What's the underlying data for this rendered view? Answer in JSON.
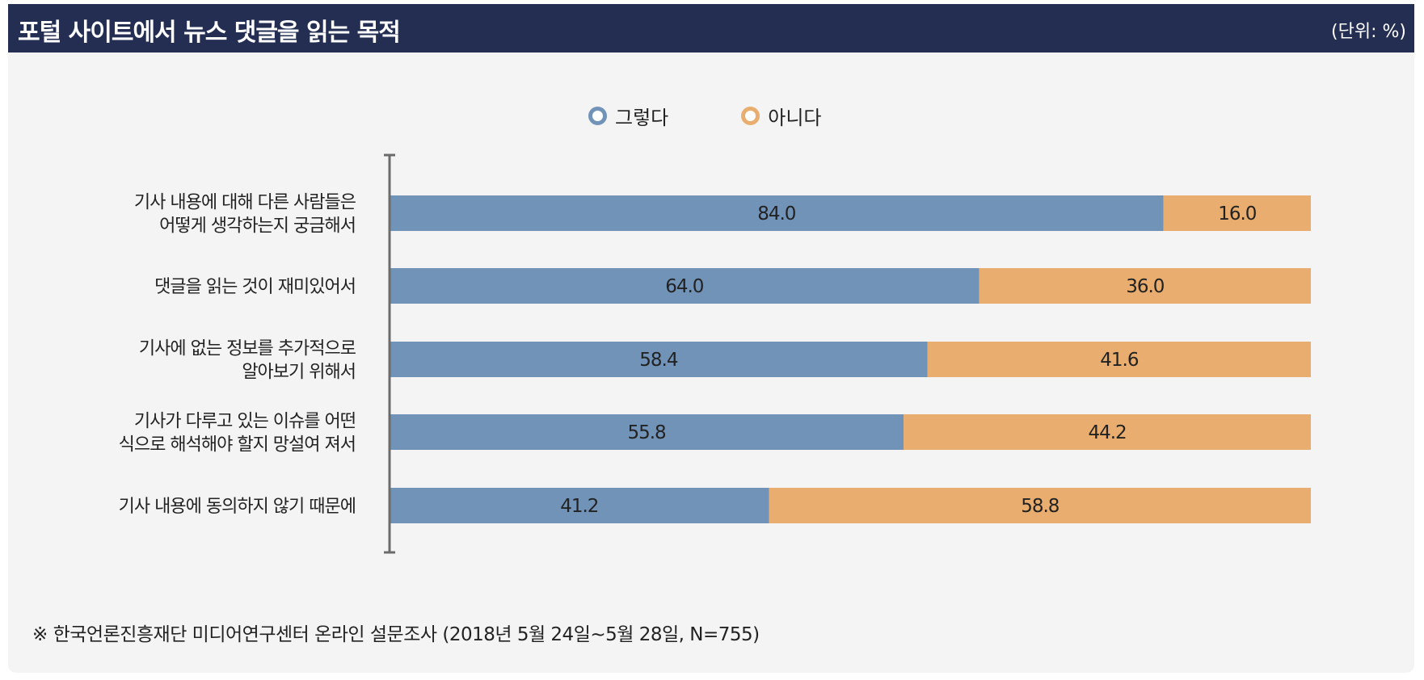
{
  "header": {
    "title": "포털 사이트에서 뉴스 댓글을 읽는 목적",
    "unit": "(단위: %)"
  },
  "colors": {
    "header_bg": "#232e52",
    "yes": "#7193b8",
    "no": "#e8ad6f",
    "axis": "#6b6b6b",
    "panel_bg": "#f4f4f4"
  },
  "chart_data": {
    "type": "bar",
    "orientation": "horizontal",
    "stacked": true,
    "categories": [
      [
        "기사 내용에 대해 다른 사람들은",
        "어떻게 생각하는지 궁금해서"
      ],
      [
        "댓글을 읽는 것이 재미있어서"
      ],
      [
        "기사에 없는 정보를 추가적으로",
        "알아보기 위해서"
      ],
      [
        "기사가 다루고 있는 이슈를 어떤",
        "식으로 해석해야 할지 망설여 져서"
      ],
      [
        "기사 내용에 동의하지 않기 때문에"
      ]
    ],
    "series": [
      {
        "name": "그렇다",
        "values": [
          "84.0",
          "64.0",
          "58.4",
          "55.8",
          "41.2"
        ]
      },
      {
        "name": "아니다",
        "values": [
          "16.0",
          "36.0",
          "41.6",
          "44.2",
          "58.8"
        ]
      }
    ],
    "xlim": [
      0,
      100
    ],
    "legend": "top-center",
    "grid": false
  },
  "footnote": "※  한국언론진흥재단 미디어연구센터 온라인 설문조사 (2018년 5월 24일~5월 28일, N=755)"
}
